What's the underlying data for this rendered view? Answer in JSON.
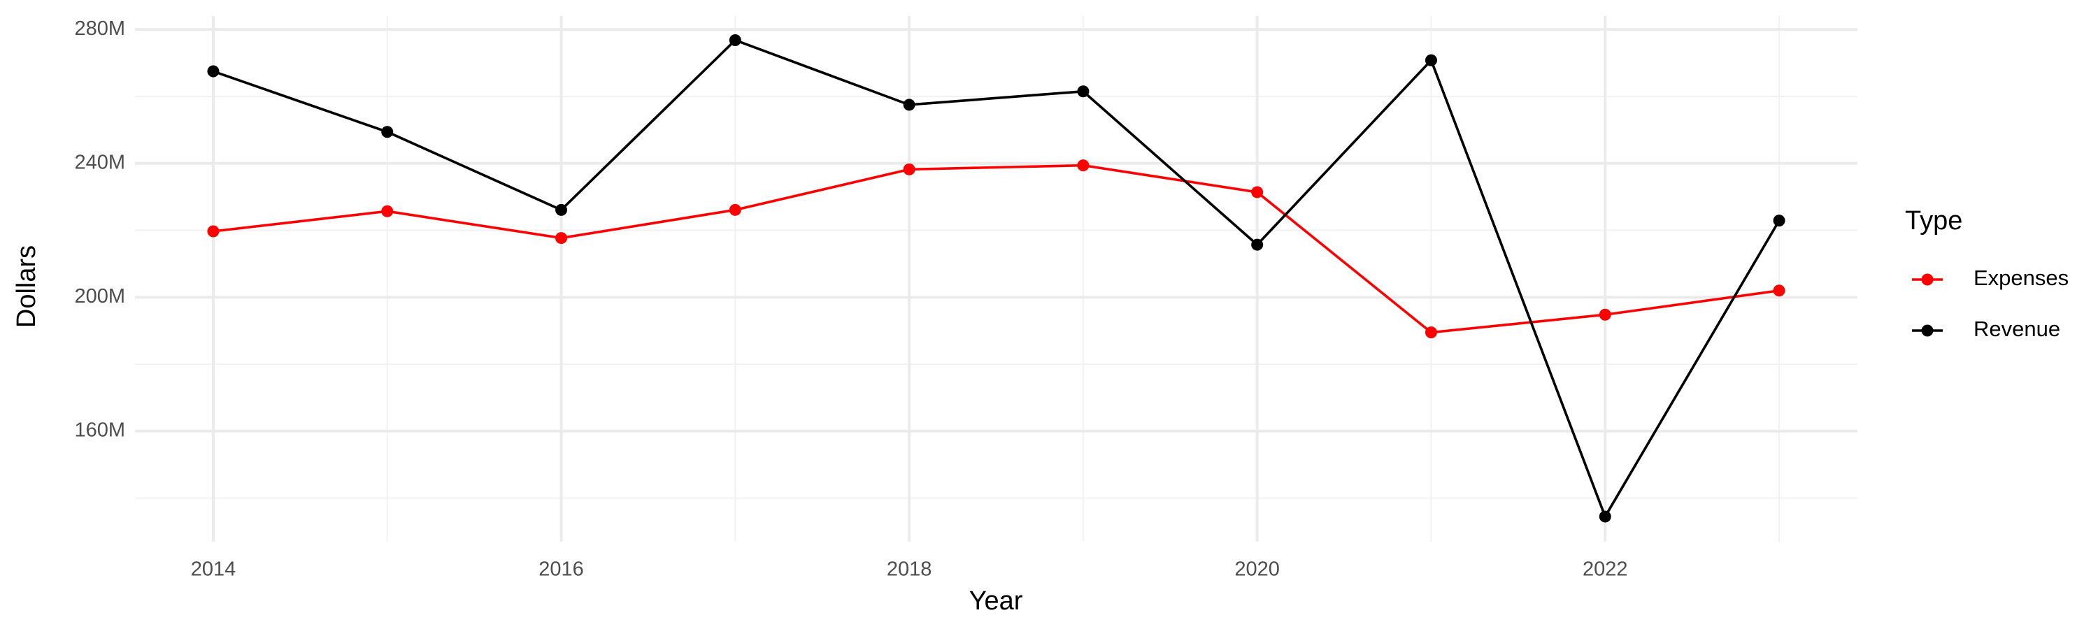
{
  "chart_data": {
    "type": "line",
    "x_label": "Year",
    "y_label": "Dollars",
    "legend_title": "Type",
    "legend_position": "right",
    "grid": true,
    "x": [
      2014,
      2015,
      2016,
      2017,
      2018,
      2019,
      2020,
      2021,
      2022,
      2023
    ],
    "xlim": [
      2013.55,
      2023.45
    ],
    "xticks": [
      2014,
      2016,
      2018,
      2020,
      2022
    ],
    "ylim": [
      127000000,
      284000000
    ],
    "yticks": [
      {
        "value": 160000000,
        "label": "160M"
      },
      {
        "value": 200000000,
        "label": "200M"
      },
      {
        "value": 240000000,
        "label": "240M"
      },
      {
        "value": 280000000,
        "label": "280M"
      }
    ],
    "series": [
      {
        "name": "Expenses",
        "color": "#ff0000",
        "values": [
          219700000,
          225700000,
          217700000,
          226100000,
          238200000,
          239400000,
          231400000,
          189500000,
          194800000,
          202000000
        ]
      },
      {
        "name": "Revenue",
        "color": "#000000",
        "values": [
          267500000,
          249400000,
          226100000,
          276800000,
          257500000,
          261500000,
          215700000,
          270800000,
          134500000,
          222900000
        ]
      }
    ]
  }
}
